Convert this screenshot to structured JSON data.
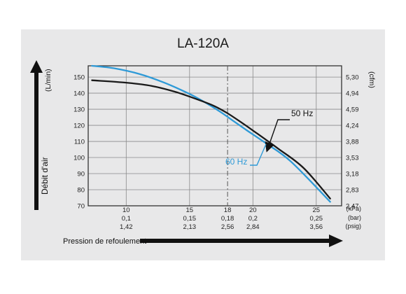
{
  "chart_data": {
    "type": "line",
    "title": "LA-120A",
    "y_label": "Débit d'air",
    "y_unit_left": "(L/min)",
    "y_unit_right": "(cfm)",
    "x_label": "Pression de refoulement",
    "x_range_kpa": [
      7,
      27
    ],
    "y_range_lmin": [
      70,
      157
    ],
    "y_ticks_left": [
      "70",
      "80",
      "90",
      "100",
      "110",
      "120",
      "130",
      "140",
      "150"
    ],
    "y_ticks_left_values": [
      70,
      80,
      90,
      100,
      110,
      120,
      130,
      140,
      150
    ],
    "y_ticks_right": [
      "2,47",
      "2,83",
      "3,18",
      "3,53",
      "3,88",
      "4,24",
      "4,59",
      "4,94",
      "5,30"
    ],
    "x_ticks": [
      {
        "kpa": 10,
        "label_kpa": "10",
        "label_bar": "0,1",
        "label_psig": "1,42"
      },
      {
        "kpa": 15,
        "label_kpa": "15",
        "label_bar": "0,15",
        "label_psig": "2,13"
      },
      {
        "kpa": 18,
        "label_kpa": "18",
        "label_bar": "0,18",
        "label_psig": "2,56"
      },
      {
        "kpa": 20,
        "label_kpa": "20",
        "label_bar": "0,2",
        "label_psig": "2,84"
      },
      {
        "kpa": 25,
        "label_kpa": "25",
        "label_bar": "0,25",
        "label_psig": "3,56"
      }
    ],
    "x_units": {
      "kpa": "(kPa)",
      "bar": "(bar)",
      "psig": "(psig)"
    },
    "dashed_line_kpa": 18,
    "series": [
      {
        "name": "50 Hz",
        "color": "#1a1a1a",
        "x": [
          7.3,
          10,
          12,
          14,
          16,
          17,
          18,
          19,
          20,
          22,
          24,
          26.1
        ],
        "y": [
          148,
          146.5,
          144.5,
          140.5,
          135,
          131.8,
          127.5,
          122.3,
          116.8,
          105.5,
          93.5,
          74.5
        ]
      },
      {
        "name": "60 Hz",
        "color": "#2e9ad7",
        "x": [
          7.3,
          9,
          11,
          13,
          15,
          16.5,
          17.5,
          18.5,
          19.5,
          21,
          23,
          26.1
        ],
        "y": [
          157,
          155.5,
          152,
          146.5,
          139.5,
          133,
          128,
          122.5,
          117,
          109,
          97.5,
          72.5
        ]
      }
    ]
  }
}
